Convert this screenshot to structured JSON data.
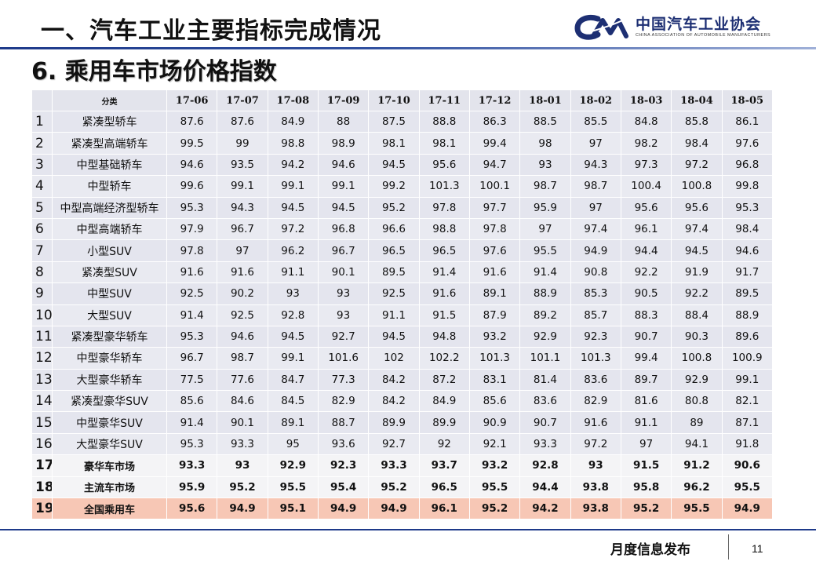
{
  "header": {
    "title": "一、汽车工业主要指标完成情况",
    "logo_cn": "中国汽车工业协会",
    "logo_en": "CHINA ASSOCIATION OF AUTOMOBILE MANUFACTURERS"
  },
  "subtitle": "6. 乘用车市场价格指数",
  "table": {
    "category_header": "分类",
    "months": [
      "17-06",
      "17-07",
      "17-08",
      "17-09",
      "17-10",
      "17-11",
      "17-12",
      "18-01",
      "18-02",
      "18-03",
      "18-04",
      "18-05"
    ],
    "rows": [
      {
        "num": "1",
        "name": "紧凑型轿车",
        "values": [
          "87.6",
          "87.6",
          "84.9",
          "88",
          "87.5",
          "88.8",
          "86.3",
          "88.5",
          "85.5",
          "84.8",
          "85.8",
          "86.1"
        ]
      },
      {
        "num": "2",
        "name": "紧凑型高端轿车",
        "values": [
          "99.5",
          "99",
          "98.8",
          "98.9",
          "98.1",
          "98.1",
          "99.4",
          "98",
          "97",
          "98.2",
          "98.4",
          "97.6"
        ]
      },
      {
        "num": "3",
        "name": "中型基础轿车",
        "values": [
          "94.6",
          "93.5",
          "94.2",
          "94.6",
          "94.5",
          "95.6",
          "94.7",
          "93",
          "94.3",
          "97.3",
          "97.2",
          "96.8"
        ]
      },
      {
        "num": "4",
        "name": "中型轿车",
        "values": [
          "99.6",
          "99.1",
          "99.1",
          "99.1",
          "99.2",
          "101.3",
          "100.1",
          "98.7",
          "98.7",
          "100.4",
          "100.8",
          "99.8"
        ]
      },
      {
        "num": "5",
        "name": "中型高端经济型轿车",
        "values": [
          "95.3",
          "94.3",
          "94.5",
          "94.5",
          "95.2",
          "97.8",
          "97.7",
          "95.9",
          "97",
          "95.6",
          "95.6",
          "95.3"
        ]
      },
      {
        "num": "6",
        "name": "中型高端轿车",
        "values": [
          "97.9",
          "96.7",
          "97.2",
          "96.8",
          "96.6",
          "98.8",
          "97.8",
          "97",
          "97.4",
          "96.1",
          "97.4",
          "98.4"
        ]
      },
      {
        "num": "7",
        "name": "小型SUV",
        "values": [
          "97.8",
          "97",
          "96.2",
          "96.7",
          "96.5",
          "96.5",
          "97.6",
          "95.5",
          "94.9",
          "94.4",
          "94.5",
          "94.6"
        ]
      },
      {
        "num": "8",
        "name": "紧凑型SUV",
        "values": [
          "91.6",
          "91.6",
          "91.1",
          "90.1",
          "89.5",
          "91.4",
          "91.6",
          "91.4",
          "90.8",
          "92.2",
          "91.9",
          "91.7"
        ]
      },
      {
        "num": "9",
        "name": "中型SUV",
        "values": [
          "92.5",
          "90.2",
          "93",
          "93",
          "92.5",
          "91.6",
          "89.1",
          "88.9",
          "85.3",
          "90.5",
          "92.2",
          "89.5"
        ]
      },
      {
        "num": "10",
        "name": "大型SUV",
        "values": [
          "91.4",
          "92.5",
          "92.8",
          "93",
          "91.1",
          "91.5",
          "87.9",
          "89.2",
          "85.7",
          "88.3",
          "88.4",
          "88.9"
        ]
      },
      {
        "num": "11",
        "name": "紧凑型豪华轿车",
        "values": [
          "95.3",
          "94.6",
          "94.5",
          "92.7",
          "94.5",
          "94.8",
          "93.2",
          "92.9",
          "92.3",
          "90.7",
          "90.3",
          "89.6"
        ]
      },
      {
        "num": "12",
        "name": "中型豪华轿车",
        "values": [
          "96.7",
          "98.7",
          "99.1",
          "101.6",
          "102",
          "102.2",
          "101.3",
          "101.1",
          "101.3",
          "99.4",
          "100.8",
          "100.9"
        ]
      },
      {
        "num": "13",
        "name": "大型豪华轿车",
        "values": [
          "77.5",
          "77.6",
          "84.7",
          "77.3",
          "84.2",
          "87.2",
          "83.1",
          "81.4",
          "83.6",
          "89.7",
          "92.9",
          "99.1"
        ]
      },
      {
        "num": "14",
        "name": "紧凑型豪华SUV",
        "values": [
          "85.6",
          "84.6",
          "84.5",
          "82.9",
          "84.2",
          "84.9",
          "85.6",
          "83.6",
          "82.9",
          "81.6",
          "80.8",
          "82.1"
        ]
      },
      {
        "num": "15",
        "name": "中型豪华SUV",
        "values": [
          "91.4",
          "90.1",
          "89.1",
          "88.7",
          "89.9",
          "89.9",
          "90.9",
          "90.7",
          "91.6",
          "91.1",
          "89",
          "87.1"
        ]
      },
      {
        "num": "16",
        "name": "大型豪华SUV",
        "values": [
          "95.3",
          "93.3",
          "95",
          "93.6",
          "92.7",
          "92",
          "92.1",
          "93.3",
          "97.2",
          "97",
          "94.1",
          "91.8"
        ]
      },
      {
        "num": "17",
        "name": "豪华车市场",
        "values": [
          "93.3",
          "93",
          "92.9",
          "92.3",
          "93.3",
          "93.7",
          "93.2",
          "92.8",
          "93",
          "91.5",
          "91.2",
          "90.6"
        ]
      },
      {
        "num": "18",
        "name": "主流车市场",
        "values": [
          "95.9",
          "95.2",
          "95.5",
          "95.4",
          "95.2",
          "96.5",
          "95.5",
          "94.4",
          "93.8",
          "95.8",
          "96.2",
          "95.5"
        ]
      },
      {
        "num": "19",
        "name": "全国乘用车",
        "values": [
          "95.6",
          "94.9",
          "95.1",
          "94.9",
          "94.9",
          "96.1",
          "95.2",
          "94.2",
          "93.8",
          "95.2",
          "95.5",
          "94.9"
        ]
      }
    ]
  },
  "footer": {
    "label": "月度信息发布",
    "page": "11"
  },
  "colors": {
    "brand_blue": "#1e3a8a",
    "row_fill": "#e6e7ef",
    "summary_fill": "#f4f4f6",
    "total_fill": "#f7c7b5"
  }
}
